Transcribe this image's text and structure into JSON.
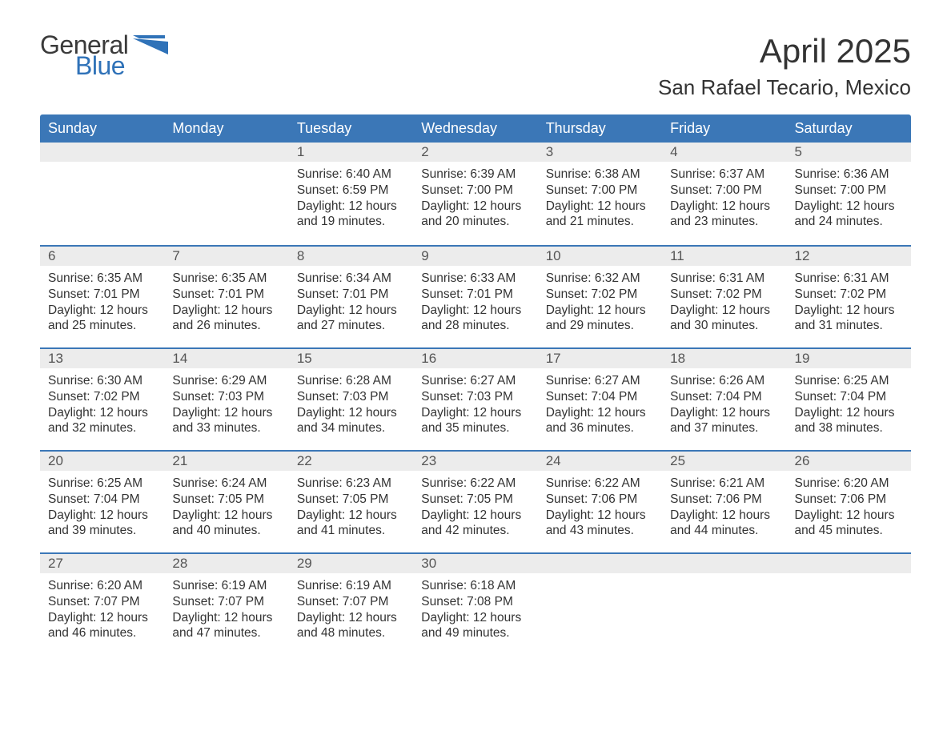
{
  "logo": {
    "word1": "General",
    "word2": "Blue",
    "color_word1": "#3a3a3a",
    "color_word2": "#2f72b8",
    "flag_color": "#2f72b8"
  },
  "header": {
    "title": "April 2025",
    "location": "San Rafael Tecario, Mexico"
  },
  "colors": {
    "header_bg": "#3b77b7",
    "header_text": "#ffffff",
    "week_rule": "#3b77b7",
    "daynum_bg": "#ececec",
    "daynum_text": "#555555",
    "body_text": "#333333",
    "page_bg": "#ffffff"
  },
  "typography": {
    "title_fontsize": 42,
    "location_fontsize": 26,
    "dayhead_fontsize": 18,
    "daynum_fontsize": 17,
    "cell_fontsize": 15.5,
    "logo_fontsize": 32
  },
  "day_headers": [
    "Sunday",
    "Monday",
    "Tuesday",
    "Wednesday",
    "Thursday",
    "Friday",
    "Saturday"
  ],
  "weeks": [
    [
      {
        "day": "",
        "sunrise": "",
        "sunset": "",
        "daylight1": "",
        "daylight2": ""
      },
      {
        "day": "",
        "sunrise": "",
        "sunset": "",
        "daylight1": "",
        "daylight2": ""
      },
      {
        "day": "1",
        "sunrise": "Sunrise: 6:40 AM",
        "sunset": "Sunset: 6:59 PM",
        "daylight1": "Daylight: 12 hours",
        "daylight2": "and 19 minutes."
      },
      {
        "day": "2",
        "sunrise": "Sunrise: 6:39 AM",
        "sunset": "Sunset: 7:00 PM",
        "daylight1": "Daylight: 12 hours",
        "daylight2": "and 20 minutes."
      },
      {
        "day": "3",
        "sunrise": "Sunrise: 6:38 AM",
        "sunset": "Sunset: 7:00 PM",
        "daylight1": "Daylight: 12 hours",
        "daylight2": "and 21 minutes."
      },
      {
        "day": "4",
        "sunrise": "Sunrise: 6:37 AM",
        "sunset": "Sunset: 7:00 PM",
        "daylight1": "Daylight: 12 hours",
        "daylight2": "and 23 minutes."
      },
      {
        "day": "5",
        "sunrise": "Sunrise: 6:36 AM",
        "sunset": "Sunset: 7:00 PM",
        "daylight1": "Daylight: 12 hours",
        "daylight2": "and 24 minutes."
      }
    ],
    [
      {
        "day": "6",
        "sunrise": "Sunrise: 6:35 AM",
        "sunset": "Sunset: 7:01 PM",
        "daylight1": "Daylight: 12 hours",
        "daylight2": "and 25 minutes."
      },
      {
        "day": "7",
        "sunrise": "Sunrise: 6:35 AM",
        "sunset": "Sunset: 7:01 PM",
        "daylight1": "Daylight: 12 hours",
        "daylight2": "and 26 minutes."
      },
      {
        "day": "8",
        "sunrise": "Sunrise: 6:34 AM",
        "sunset": "Sunset: 7:01 PM",
        "daylight1": "Daylight: 12 hours",
        "daylight2": "and 27 minutes."
      },
      {
        "day": "9",
        "sunrise": "Sunrise: 6:33 AM",
        "sunset": "Sunset: 7:01 PM",
        "daylight1": "Daylight: 12 hours",
        "daylight2": "and 28 minutes."
      },
      {
        "day": "10",
        "sunrise": "Sunrise: 6:32 AM",
        "sunset": "Sunset: 7:02 PM",
        "daylight1": "Daylight: 12 hours",
        "daylight2": "and 29 minutes."
      },
      {
        "day": "11",
        "sunrise": "Sunrise: 6:31 AM",
        "sunset": "Sunset: 7:02 PM",
        "daylight1": "Daylight: 12 hours",
        "daylight2": "and 30 minutes."
      },
      {
        "day": "12",
        "sunrise": "Sunrise: 6:31 AM",
        "sunset": "Sunset: 7:02 PM",
        "daylight1": "Daylight: 12 hours",
        "daylight2": "and 31 minutes."
      }
    ],
    [
      {
        "day": "13",
        "sunrise": "Sunrise: 6:30 AM",
        "sunset": "Sunset: 7:02 PM",
        "daylight1": "Daylight: 12 hours",
        "daylight2": "and 32 minutes."
      },
      {
        "day": "14",
        "sunrise": "Sunrise: 6:29 AM",
        "sunset": "Sunset: 7:03 PM",
        "daylight1": "Daylight: 12 hours",
        "daylight2": "and 33 minutes."
      },
      {
        "day": "15",
        "sunrise": "Sunrise: 6:28 AM",
        "sunset": "Sunset: 7:03 PM",
        "daylight1": "Daylight: 12 hours",
        "daylight2": "and 34 minutes."
      },
      {
        "day": "16",
        "sunrise": "Sunrise: 6:27 AM",
        "sunset": "Sunset: 7:03 PM",
        "daylight1": "Daylight: 12 hours",
        "daylight2": "and 35 minutes."
      },
      {
        "day": "17",
        "sunrise": "Sunrise: 6:27 AM",
        "sunset": "Sunset: 7:04 PM",
        "daylight1": "Daylight: 12 hours",
        "daylight2": "and 36 minutes."
      },
      {
        "day": "18",
        "sunrise": "Sunrise: 6:26 AM",
        "sunset": "Sunset: 7:04 PM",
        "daylight1": "Daylight: 12 hours",
        "daylight2": "and 37 minutes."
      },
      {
        "day": "19",
        "sunrise": "Sunrise: 6:25 AM",
        "sunset": "Sunset: 7:04 PM",
        "daylight1": "Daylight: 12 hours",
        "daylight2": "and 38 minutes."
      }
    ],
    [
      {
        "day": "20",
        "sunrise": "Sunrise: 6:25 AM",
        "sunset": "Sunset: 7:04 PM",
        "daylight1": "Daylight: 12 hours",
        "daylight2": "and 39 minutes."
      },
      {
        "day": "21",
        "sunrise": "Sunrise: 6:24 AM",
        "sunset": "Sunset: 7:05 PM",
        "daylight1": "Daylight: 12 hours",
        "daylight2": "and 40 minutes."
      },
      {
        "day": "22",
        "sunrise": "Sunrise: 6:23 AM",
        "sunset": "Sunset: 7:05 PM",
        "daylight1": "Daylight: 12 hours",
        "daylight2": "and 41 minutes."
      },
      {
        "day": "23",
        "sunrise": "Sunrise: 6:22 AM",
        "sunset": "Sunset: 7:05 PM",
        "daylight1": "Daylight: 12 hours",
        "daylight2": "and 42 minutes."
      },
      {
        "day": "24",
        "sunrise": "Sunrise: 6:22 AM",
        "sunset": "Sunset: 7:06 PM",
        "daylight1": "Daylight: 12 hours",
        "daylight2": "and 43 minutes."
      },
      {
        "day": "25",
        "sunrise": "Sunrise: 6:21 AM",
        "sunset": "Sunset: 7:06 PM",
        "daylight1": "Daylight: 12 hours",
        "daylight2": "and 44 minutes."
      },
      {
        "day": "26",
        "sunrise": "Sunrise: 6:20 AM",
        "sunset": "Sunset: 7:06 PM",
        "daylight1": "Daylight: 12 hours",
        "daylight2": "and 45 minutes."
      }
    ],
    [
      {
        "day": "27",
        "sunrise": "Sunrise: 6:20 AM",
        "sunset": "Sunset: 7:07 PM",
        "daylight1": "Daylight: 12 hours",
        "daylight2": "and 46 minutes."
      },
      {
        "day": "28",
        "sunrise": "Sunrise: 6:19 AM",
        "sunset": "Sunset: 7:07 PM",
        "daylight1": "Daylight: 12 hours",
        "daylight2": "and 47 minutes."
      },
      {
        "day": "29",
        "sunrise": "Sunrise: 6:19 AM",
        "sunset": "Sunset: 7:07 PM",
        "daylight1": "Daylight: 12 hours",
        "daylight2": "and 48 minutes."
      },
      {
        "day": "30",
        "sunrise": "Sunrise: 6:18 AM",
        "sunset": "Sunset: 7:08 PM",
        "daylight1": "Daylight: 12 hours",
        "daylight2": "and 49 minutes."
      },
      {
        "day": "",
        "sunrise": "",
        "sunset": "",
        "daylight1": "",
        "daylight2": ""
      },
      {
        "day": "",
        "sunrise": "",
        "sunset": "",
        "daylight1": "",
        "daylight2": ""
      },
      {
        "day": "",
        "sunrise": "",
        "sunset": "",
        "daylight1": "",
        "daylight2": ""
      }
    ]
  ]
}
